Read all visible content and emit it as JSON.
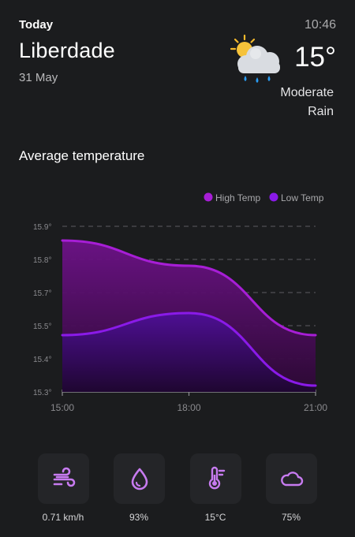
{
  "header": {
    "today_label": "Today",
    "city": "Liberdade",
    "date": "31 May",
    "time": "10:46",
    "temperature": "15°",
    "condition_line1": "Moderate",
    "condition_line2": "Rain",
    "weather_icon": "sun-behind-rain-cloud-icon"
  },
  "section": {
    "title": "Average temperature"
  },
  "chart_data": {
    "type": "area",
    "legend": [
      {
        "name": "High Temp",
        "color": "#a71ed6"
      },
      {
        "name": "Low Temp",
        "color": "#8a1ae8"
      }
    ],
    "legend_position": "top-right",
    "x": [
      "15:00",
      "18:00",
      "21:00"
    ],
    "y_ticks": [
      "15.9°",
      "15.8°",
      "15.7°",
      "15.5°",
      "15.4°",
      "15.3°"
    ],
    "ylim": [
      15.3,
      15.8
    ],
    "grid": true,
    "series": [
      {
        "name": "High Temp",
        "values": [
          15.78,
          15.7,
          15.48
        ],
        "color": "#a71ed6"
      },
      {
        "name": "Low Temp",
        "values": [
          15.48,
          15.55,
          15.32
        ],
        "color": "#8a1ae8"
      }
    ]
  },
  "metrics": [
    {
      "icon": "wind-icon",
      "value": "0.71 km/h"
    },
    {
      "icon": "humidity-drop-icon",
      "value": "93%"
    },
    {
      "icon": "thermometer-icon",
      "value": "15°C"
    },
    {
      "icon": "cloud-icon",
      "value": "75%"
    }
  ],
  "colors": {
    "background": "#1b1c1e",
    "card": "#242528",
    "accent": "#a71ed6",
    "accent_icon": "#c77bf0"
  }
}
